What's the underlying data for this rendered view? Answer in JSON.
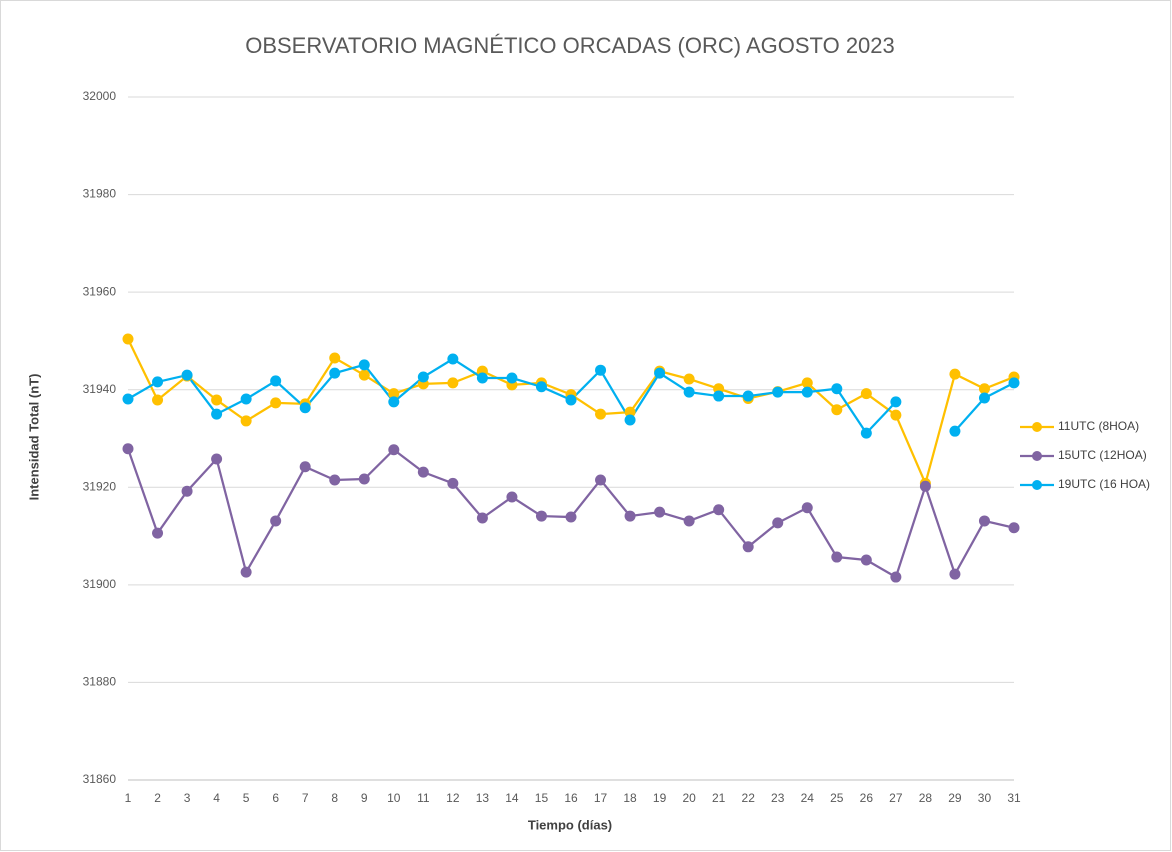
{
  "chart_data": {
    "type": "line",
    "title": "OBSERVATORIO MAGNÉTICO ORCADAS (ORC) AGOSTO 2023",
    "x_label": "Tiempo (días)",
    "y_label": "Intensidad Total (nT)",
    "x": [
      1,
      2,
      3,
      4,
      5,
      6,
      7,
      8,
      9,
      10,
      11,
      12,
      13,
      14,
      15,
      16,
      17,
      18,
      19,
      20,
      21,
      22,
      23,
      24,
      25,
      26,
      27,
      28,
      29,
      30,
      31
    ],
    "xlim": [
      1,
      31
    ],
    "xticks": [
      1,
      2,
      3,
      4,
      5,
      6,
      7,
      8,
      9,
      10,
      11,
      12,
      13,
      14,
      15,
      16,
      17,
      18,
      19,
      20,
      21,
      22,
      23,
      24,
      25,
      26,
      27,
      28,
      29,
      30,
      31
    ],
    "ylim": [
      31860,
      32000
    ],
    "yticks": [
      31860,
      31880,
      31900,
      31920,
      31940,
      31960,
      31980,
      32000
    ],
    "grid": true,
    "legend": "right",
    "series": [
      {
        "name": "11UTC (8HOA)",
        "color": "#FFC000",
        "values": [
          31950.4,
          31937.9,
          31942.8,
          31937.9,
          31933.6,
          31937.3,
          31937.1,
          31946.5,
          31943,
          31939.2,
          31941.2,
          31941.4,
          31943.8,
          31941,
          31941.4,
          31939,
          31935,
          31935.4,
          31943.8,
          31942.2,
          31940.2,
          31938.2,
          31939.6,
          31941.4,
          31935.9,
          31939.2,
          31934.8,
          31920.8,
          31943.2,
          31940.2,
          31942.6
        ]
      },
      {
        "name": "15UTC (12HOA)",
        "color": "#8064A2",
        "values": [
          31927.9,
          31910.6,
          31919.2,
          31925.8,
          31902.6,
          31913.1,
          31924.2,
          31921.5,
          31921.7,
          31927.7,
          31923.1,
          31920.8,
          31913.7,
          31918,
          31914.1,
          31913.9,
          31921.5,
          31914.1,
          31914.9,
          31913.1,
          31915.4,
          31907.8,
          31912.7,
          31915.8,
          31905.7,
          31905.1,
          31901.6,
          31920.2,
          31902.2,
          31913.1,
          31911.7
        ]
      },
      {
        "name": "19UTC (16 HOA)",
        "color": "#00B0F0",
        "values": [
          31938.1,
          31941.6,
          31943,
          31935,
          31938.1,
          31941.8,
          31936.3,
          31943.4,
          31945.1,
          31937.5,
          31942.6,
          31946.3,
          31942.4,
          31942.4,
          31940.6,
          31937.9,
          31944,
          31933.8,
          31943.4,
          31939.5,
          31938.7,
          31938.7,
          31939.5,
          31939.5,
          31940.2,
          31931.1,
          31937.5,
          null,
          31931.5,
          31938.3,
          31941.4
        ]
      }
    ]
  }
}
